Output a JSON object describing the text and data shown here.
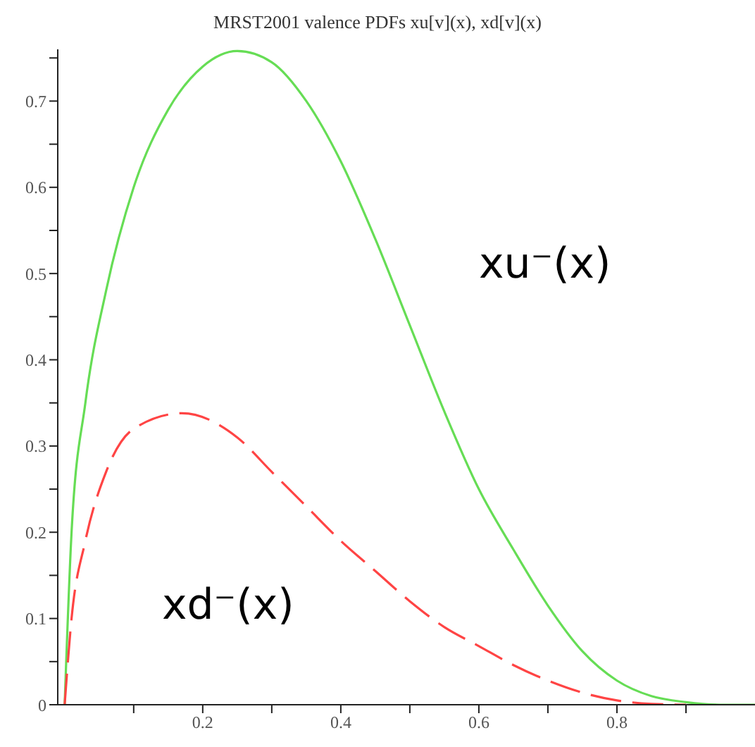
{
  "chart_data": {
    "type": "line",
    "title": "MRST2001 valence PDFs xu[v](x), xd[v](x)",
    "xlim": [
      -0.01,
      1.0
    ],
    "ylim": [
      0,
      0.76
    ],
    "xticks": [
      {
        "value": 0.1,
        "label": null
      },
      0.2,
      {
        "value": 0.3,
        "label": null
      },
      0.4,
      {
        "value": 0.5,
        "label": null
      },
      0.6,
      {
        "value": 0.7,
        "label": null
      },
      0.8,
      {
        "value": 0.9,
        "label": null
      }
    ],
    "yticks": [
      0,
      {
        "value": 0.05,
        "label": null
      },
      0.1,
      {
        "value": 0.15,
        "label": null
      },
      0.2,
      {
        "value": 0.25,
        "label": null
      },
      0.3,
      {
        "value": 0.35,
        "label": null
      },
      0.4,
      {
        "value": 0.45,
        "label": null
      },
      0.5,
      {
        "value": 0.55,
        "label": null
      },
      0.6,
      {
        "value": 0.65,
        "label": null
      },
      0.7,
      {
        "value": 0.75,
        "label": null
      }
    ],
    "grid": false,
    "legend": false,
    "marker": "none",
    "series": [
      {
        "name": "xu⁻(x)",
        "color": "#66dd55",
        "line_style": "solid",
        "x": [
          0,
          0.01,
          0.03,
          0.06,
          0.1,
          0.15,
          0.2,
          0.25,
          0.3,
          0.35,
          0.4,
          0.45,
          0.5,
          0.55,
          0.6,
          0.65,
          0.7,
          0.75,
          0.8,
          0.85,
          0.9,
          0.95,
          1.0
        ],
        "values": [
          0,
          0.2,
          0.35,
          0.48,
          0.6,
          0.69,
          0.74,
          0.758,
          0.745,
          0.7,
          0.63,
          0.54,
          0.44,
          0.34,
          0.25,
          0.18,
          0.115,
          0.062,
          0.028,
          0.01,
          0.003,
          0,
          0
        ]
      },
      {
        "name": "xd⁻(x)",
        "color": "#ff4444",
        "line_style": "dashed",
        "x": [
          0,
          0.01,
          0.03,
          0.06,
          0.1,
          0.17,
          0.25,
          0.3,
          0.35,
          0.4,
          0.45,
          0.5,
          0.55,
          0.6,
          0.65,
          0.7,
          0.75,
          0.8,
          0.85,
          0.9
        ],
        "values": [
          0,
          0.1,
          0.19,
          0.27,
          0.32,
          0.338,
          0.31,
          0.27,
          0.23,
          0.19,
          0.155,
          0.12,
          0.09,
          0.068,
          0.046,
          0.028,
          0.014,
          0.005,
          0.001,
          0
        ]
      }
    ]
  }
}
